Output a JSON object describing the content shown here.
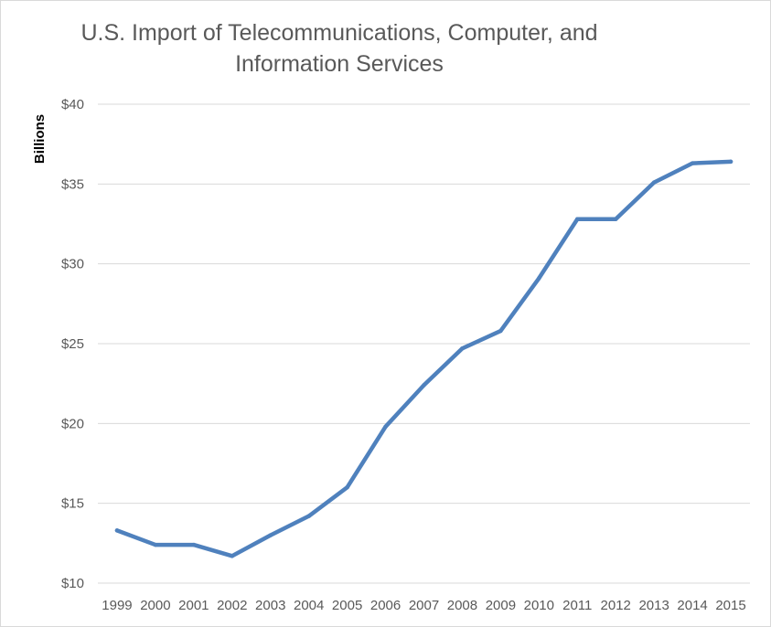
{
  "chart_data": {
    "type": "line",
    "title": "U.S. Import of Telecommunications, Computer, and\nInformation Services",
    "xlabel": "",
    "ylabel": "Billions",
    "x": [
      "1999",
      "2000",
      "2001",
      "2002",
      "2003",
      "2004",
      "2005",
      "2006",
      "2007",
      "2008",
      "2009",
      "2010",
      "2011",
      "2012",
      "2013",
      "2014",
      "2015"
    ],
    "series": [
      {
        "values": [
          13.3,
          12.4,
          12.4,
          11.7,
          13.0,
          14.2,
          16.0,
          19.8,
          22.4,
          24.7,
          25.8,
          29.1,
          32.8,
          32.8,
          35.1,
          36.3,
          36.4
        ],
        "color": "#4f81bd"
      }
    ],
    "ylim": [
      10,
      40
    ],
    "ytick_labels": [
      "$10",
      "$15",
      "$20",
      "$25",
      "$30",
      "$35",
      "$40"
    ],
    "grid": true,
    "legend": "none"
  }
}
